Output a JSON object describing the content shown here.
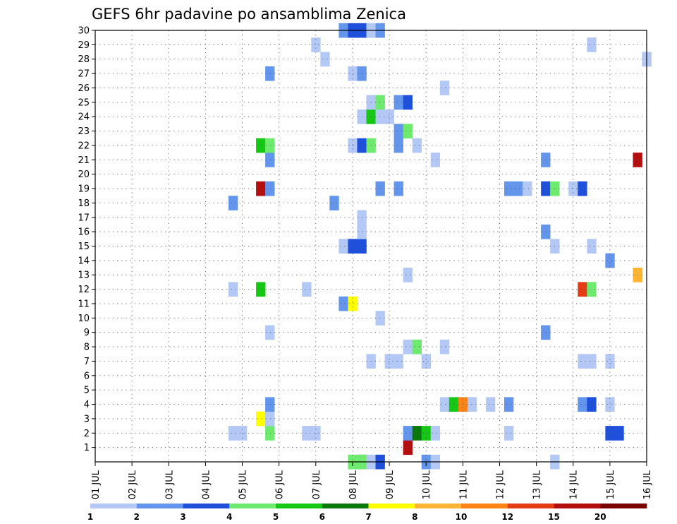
{
  "chart_data": {
    "type": "heatmap",
    "title": "GEFS 6hr padavine po ansamblima Zenica",
    "xlabel": "",
    "ylabel": "",
    "x_tick_labels": [
      "01 JUL",
      "02 JUL",
      "03 JUL",
      "04 JUL",
      "05 JUL",
      "06 JUL",
      "07 JUL",
      "08 JUL",
      "09 JUL",
      "10 JUL",
      "11 JUL",
      "12 JUL",
      "13 JUL",
      "14 JUL",
      "15 JUL",
      "16 JUL"
    ],
    "xlim": [
      0,
      60
    ],
    "ylim": [
      0,
      30
    ],
    "y_tick_labels": [
      "1",
      "2",
      "3",
      "4",
      "5",
      "6",
      "7",
      "8",
      "9",
      "10",
      "11",
      "12",
      "13",
      "14",
      "15",
      "16",
      "17",
      "18",
      "19",
      "20",
      "21",
      "22",
      "23",
      "24",
      "25",
      "26",
      "27",
      "28",
      "29",
      "30"
    ],
    "grid": true,
    "grid_style": "dotted",
    "colorbar_levels": [
      "1",
      "2",
      "3",
      "4",
      "5",
      "6",
      "7",
      "8",
      "10",
      "12",
      "15",
      "20"
    ],
    "colorbar_colors": [
      "#b4c8f5",
      "#6495ed",
      "#1e50dc",
      "#6eeb6e",
      "#14c814",
      "#0a780a",
      "#ffff00",
      "#ffb432",
      "#ff8214",
      "#e63c14",
      "#b40f0f",
      "#780000"
    ],
    "cells": [
      [
        29,
        0,
        2
      ],
      [
        28,
        0,
        4
      ],
      [
        29,
        0,
        4
      ],
      [
        30,
        0,
        1
      ],
      [
        31,
        0,
        3
      ],
      [
        36,
        0,
        2
      ],
      [
        37,
        0,
        1
      ],
      [
        50,
        0,
        1
      ],
      [
        34,
        1,
        11
      ],
      [
        15,
        2,
        1
      ],
      [
        16,
        2,
        1
      ],
      [
        19,
        2,
        4
      ],
      [
        23,
        2,
        1
      ],
      [
        24,
        2,
        1
      ],
      [
        34,
        2,
        2
      ],
      [
        35,
        2,
        6
      ],
      [
        36,
        2,
        5
      ],
      [
        37,
        2,
        1
      ],
      [
        45,
        2,
        1
      ],
      [
        56,
        2,
        3
      ],
      [
        57,
        2,
        3
      ],
      [
        18,
        3,
        7
      ],
      [
        19,
        3,
        1
      ],
      [
        19,
        4,
        2
      ],
      [
        38,
        4,
        1
      ],
      [
        39,
        4,
        5
      ],
      [
        40,
        4,
        9
      ],
      [
        41,
        4,
        1
      ],
      [
        43,
        4,
        1
      ],
      [
        45,
        4,
        2
      ],
      [
        53,
        4,
        2
      ],
      [
        54,
        4,
        3
      ],
      [
        56,
        4,
        1
      ],
      [
        30,
        7,
        1
      ],
      [
        32,
        7,
        1
      ],
      [
        33,
        7,
        1
      ],
      [
        36,
        7,
        1
      ],
      [
        53,
        7,
        1
      ],
      [
        54,
        7,
        1
      ],
      [
        56,
        7,
        1
      ],
      [
        34,
        8,
        1
      ],
      [
        35,
        8,
        4
      ],
      [
        38,
        8,
        1
      ],
      [
        19,
        9,
        1
      ],
      [
        49,
        9,
        2
      ],
      [
        31,
        10,
        1
      ],
      [
        27,
        11,
        2
      ],
      [
        28,
        11,
        7
      ],
      [
        15,
        12,
        1
      ],
      [
        18,
        12,
        5
      ],
      [
        23,
        12,
        1
      ],
      [
        53,
        12,
        10
      ],
      [
        54,
        12,
        4
      ],
      [
        59,
        13,
        8
      ],
      [
        56,
        14,
        2
      ],
      [
        34,
        13,
        1
      ],
      [
        27,
        15,
        1
      ],
      [
        28,
        15,
        3
      ],
      [
        29,
        15,
        3
      ],
      [
        50,
        15,
        1
      ],
      [
        54,
        15,
        1
      ],
      [
        29,
        16,
        1
      ],
      [
        49,
        16,
        2
      ],
      [
        29,
        17,
        1
      ],
      [
        15,
        18,
        2
      ],
      [
        26,
        18,
        2
      ],
      [
        18,
        19,
        11
      ],
      [
        19,
        19,
        2
      ],
      [
        31,
        19,
        2
      ],
      [
        33,
        19,
        2
      ],
      [
        45,
        19,
        2
      ],
      [
        46,
        19,
        2
      ],
      [
        47,
        19,
        1
      ],
      [
        49,
        19,
        3
      ],
      [
        50,
        19,
        4
      ],
      [
        52,
        19,
        1
      ],
      [
        53,
        19,
        3
      ],
      [
        19,
        21,
        2
      ],
      [
        37,
        21,
        1
      ],
      [
        49,
        21,
        2
      ],
      [
        59,
        21,
        11
      ],
      [
        18,
        22,
        5
      ],
      [
        19,
        22,
        4
      ],
      [
        28,
        22,
        1
      ],
      [
        29,
        22,
        3
      ],
      [
        30,
        22,
        4
      ],
      [
        33,
        22,
        2
      ],
      [
        35,
        22,
        1
      ],
      [
        33,
        23,
        2
      ],
      [
        34,
        23,
        4
      ],
      [
        29,
        24,
        1
      ],
      [
        30,
        24,
        5
      ],
      [
        31,
        24,
        1
      ],
      [
        32,
        24,
        1
      ],
      [
        30,
        25,
        1
      ],
      [
        31,
        25,
        4
      ],
      [
        33,
        25,
        2
      ],
      [
        34,
        25,
        3
      ],
      [
        38,
        26,
        1
      ],
      [
        19,
        27,
        2
      ],
      [
        28,
        27,
        1
      ],
      [
        29,
        27,
        2
      ],
      [
        25,
        28,
        1
      ],
      [
        60,
        28,
        1
      ],
      [
        24,
        29,
        1
      ],
      [
        54,
        29,
        1
      ],
      [
        27,
        30,
        2
      ],
      [
        28,
        30,
        3
      ],
      [
        29,
        30,
        3
      ],
      [
        30,
        30,
        1
      ],
      [
        31,
        30,
        2
      ]
    ]
  }
}
